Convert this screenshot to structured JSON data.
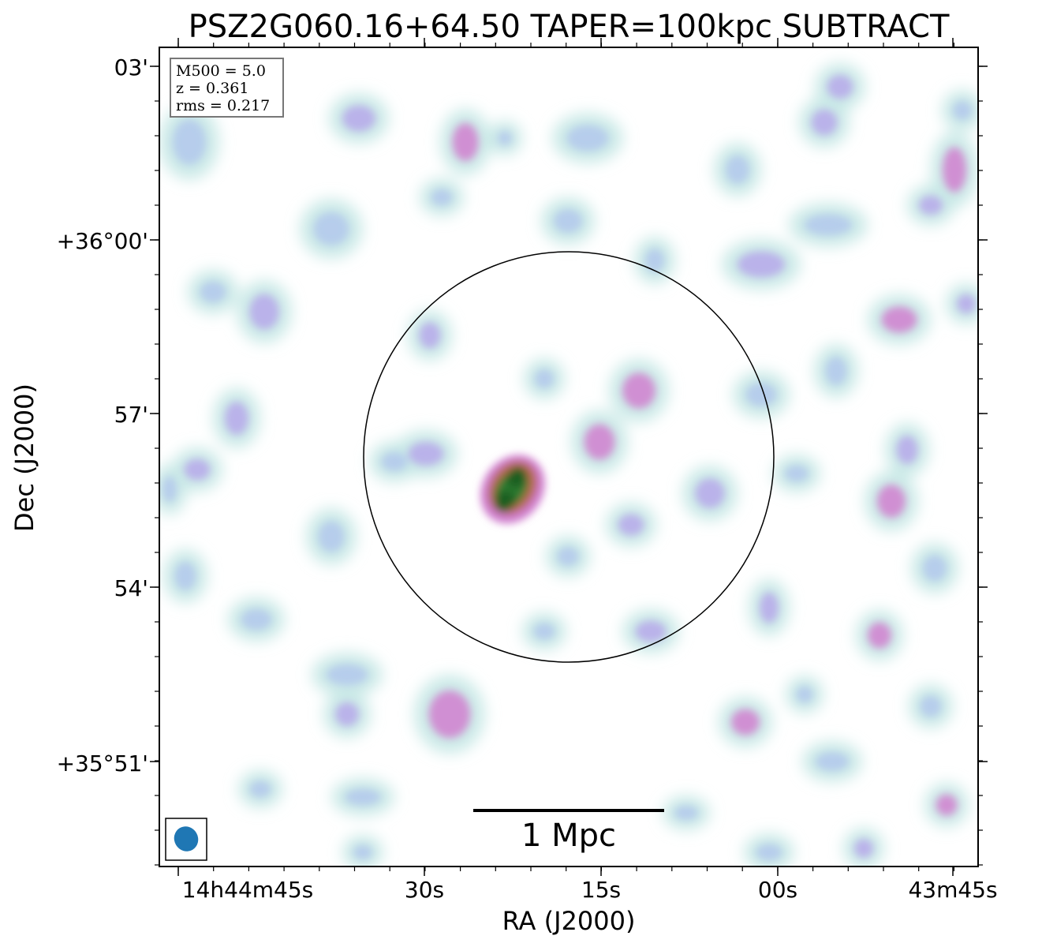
{
  "chart_data": {
    "type": "heatmap",
    "title": "PSZ2G060.16+64.50 TAPER=100kpc SUBTRACT",
    "xlabel": "RA (J2000)",
    "ylabel": "Dec (J2000)",
    "x_ticks": [
      {
        "label": "14h44m45s",
        "ra_sec": 45
      },
      {
        "label": "30s",
        "ra_sec": 30
      },
      {
        "label": "15s",
        "ra_sec": 15
      },
      {
        "label": "00s",
        "ra_sec": 0
      },
      {
        "label": "43m45s",
        "ra_sec": -15
      }
    ],
    "y_ticks": [
      {
        "label": "03'",
        "dec_arcmin": 3
      },
      {
        "label": "+36°00'",
        "dec_arcmin": 0
      },
      {
        "label": "57'",
        "dec_arcmin": -3
      },
      {
        "label": "54'",
        "dec_arcmin": -6
      },
      {
        "label": "+35°51'",
        "dec_arcmin": -9
      }
    ],
    "annotations": [
      "M500 = 5.0",
      "z = 0.361",
      "rms = 0.217"
    ],
    "scale_bar_label": "1 Mpc",
    "colormap": [
      "#ffffff",
      "#c6e8e6",
      "#b3c8ec",
      "#b6a8ea",
      "#d07fcf",
      "#b86a4c",
      "#2e7d32",
      "#1b5e20"
    ],
    "circle_color": "#000000",
    "beam_color": "#1f77b4"
  }
}
